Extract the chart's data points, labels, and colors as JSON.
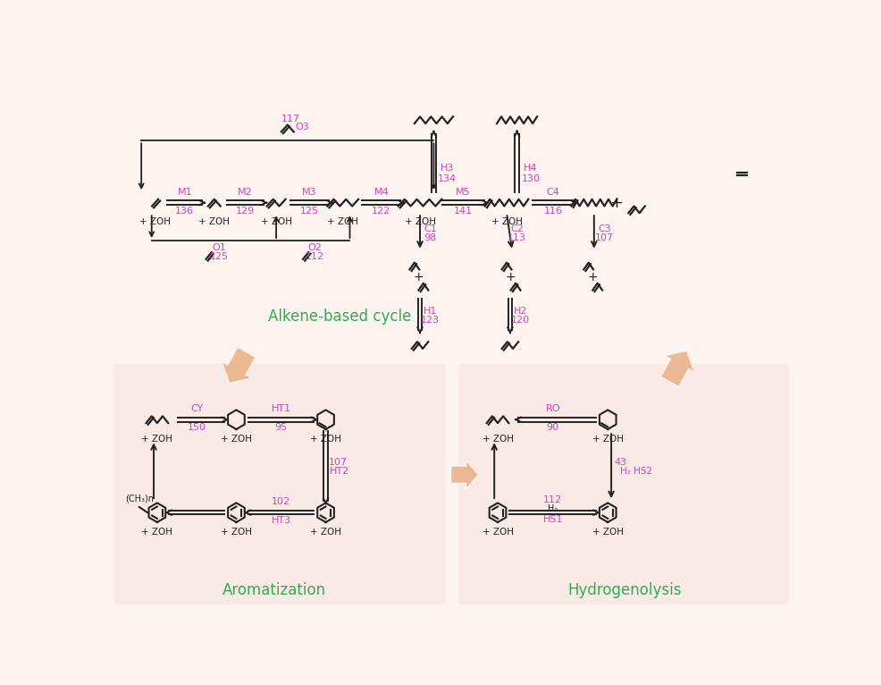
{
  "bg_main": "#fdf3ef",
  "bg_panel": "#faeae6",
  "magenta": "#cc44bb",
  "green": "#33aa55",
  "dark": "#222222",
  "salmon": "#e8a878",
  "title_top": "Alkene-based cycle",
  "title_arom": "Aromatization",
  "title_hydro": "Hydrogenolysis"
}
